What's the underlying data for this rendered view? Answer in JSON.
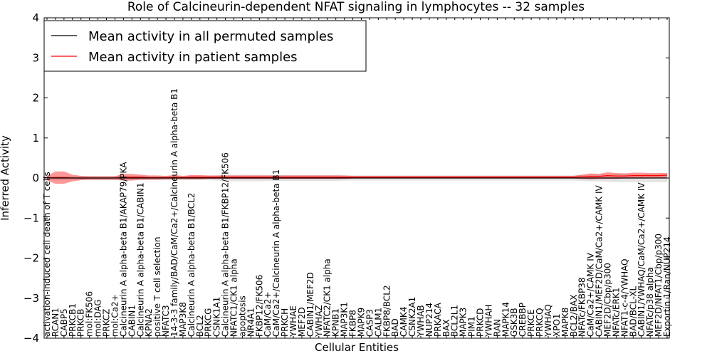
{
  "chart_data": {
    "type": "line",
    "title": "Role of Calcineurin-dependent NFAT signaling in lymphocytes -- 32 samples",
    "xlabel": "Cellular Entities",
    "ylabel": "Inferred Activity",
    "ylim": [
      -4,
      4
    ],
    "yticks": [
      -4,
      -3,
      -2,
      -1,
      0,
      1,
      2,
      3,
      4
    ],
    "ytick_labels": [
      "−4",
      "−3",
      "−2",
      "−1",
      "0",
      "1",
      "2",
      "3",
      "4"
    ],
    "legend": {
      "placement": "top-left",
      "entries": [
        {
          "label": "Mean activity in all permuted samples",
          "color": "#000000"
        },
        {
          "label": "Mean activity in patient samples",
          "color": "#ff0000"
        }
      ]
    },
    "categories": [
      "activation-induced cell death of T cells",
      "RCAN1",
      "CABP5",
      "PRKCB1",
      "PRKCB",
      "mol:FK506",
      "mol:DAG",
      "PRKCZ",
      "mol:Ca2+",
      "Calcineurin A alpha-beta B1/AKAP79/PKA",
      "CABIN1",
      "Calcineurin A alpha-beta B1/CABIN1",
      "KPNA2",
      "positive T cell selection",
      "NFATC3",
      "14-3-3 family/BAD/CaM/Ca2+/Calcineurin A alpha-beta B1",
      "MAP3K8",
      "Calcineurin A alpha-beta B1/BCL2",
      "BCL2",
      "PRKCG",
      "CSNK1A1",
      "Calcineurin A alpha-beta B1/FKBP12/FK506",
      "NFATC1/CK1 alpha",
      "apoptosis",
      "NR4A1",
      "FKBP12/FK506",
      "CaM/Ca2+",
      "CaM/Ca2+/Calcineurin A alpha-beta B1",
      "PRKCH",
      "YWHAE",
      "MEF2D",
      "CABIN1/MEF2D",
      "YWHAZ",
      "NFATC2/CK1 alpha",
      "KPNB1",
      "MAP3K1",
      "FKBP8",
      "MAPK9",
      "CASP3",
      "CALM1",
      "FKBP8/BCL2",
      "BAD",
      "CAMK4",
      "CSNK2A1",
      "YWHAB",
      "NUP214",
      "PRKACA",
      "BAX",
      "BCL2L1",
      "MAPK3",
      "PIM1",
      "PRKCD",
      "YWHAH",
      "RAN",
      "MAPK14",
      "GSK3B",
      "CREBBP",
      "PRKCE",
      "PRKCQ",
      "YWHAQ",
      "XPO1",
      "MAPK8",
      "BCL2/BAX",
      "NFATc/FKBP38",
      "CaM/Ca2+/CAMK IV",
      "CABIN1/MEF2D/CaM/Ca2+/CAMK IV",
      "MEF2D/Cbp/p300",
      "NFATc/ERK1",
      "NFAT1-c-4/YWHAQ",
      "BAD/BCL-XL",
      "CABIN1/YWHAQ/CaM/Ca2+/CAMK IV",
      "NFATc/p38 alpha",
      "MEF2D/NFAT1/Cbp/p300",
      "Exportin 1/Ran/NUP214"
    ],
    "series": [
      {
        "name": "Mean activity in all permuted samples",
        "color": "#000000",
        "mean": [
          0.0,
          0.0,
          0.0,
          0.0,
          0.0,
          0.0,
          0.0,
          0.0,
          0.0,
          0.0,
          0.0,
          0.0,
          0.0,
          0.0,
          0.0,
          0.0,
          0.0,
          0.0,
          0.0,
          0.0,
          0.0,
          0.0,
          0.0,
          0.0,
          0.0,
          0.0,
          0.0,
          0.0,
          0.0,
          0.0,
          0.0,
          0.0,
          0.0,
          0.0,
          0.0,
          0.0,
          0.0,
          0.0,
          0.0,
          0.0,
          0.0,
          0.0,
          0.0,
          0.0,
          0.0,
          0.0,
          0.0,
          0.0,
          0.0,
          0.0,
          0.0,
          0.0,
          0.0,
          0.0,
          0.0,
          0.0,
          0.0,
          0.0,
          0.0,
          0.0,
          0.0,
          0.0,
          0.0,
          0.0,
          0.0,
          0.0,
          0.0,
          0.0,
          0.0,
          0.0,
          0.0,
          0.0,
          0.0,
          0.0
        ],
        "band": [
          0.05,
          0.05,
          0.05,
          0.05,
          0.05,
          0.05,
          0.05,
          0.05,
          0.05,
          0.05,
          0.05,
          0.05,
          0.05,
          0.05,
          0.05,
          0.05,
          0.05,
          0.05,
          0.05,
          0.05,
          0.06,
          0.07,
          0.08,
          0.08,
          0.08,
          0.08,
          0.07,
          0.07,
          0.07,
          0.07,
          0.07,
          0.07,
          0.07,
          0.07,
          0.07,
          0.06,
          0.06,
          0.06,
          0.06,
          0.06,
          0.06,
          0.06,
          0.06,
          0.06,
          0.06,
          0.06,
          0.06,
          0.06,
          0.06,
          0.06,
          0.06,
          0.06,
          0.06,
          0.06,
          0.06,
          0.06,
          0.06,
          0.06,
          0.06,
          0.06,
          0.06,
          0.06,
          0.06,
          0.07,
          0.08,
          0.08,
          0.09,
          0.1,
          0.1,
          0.1,
          0.1,
          0.1,
          0.1,
          0.1
        ]
      },
      {
        "name": "Mean activity in patient samples",
        "color": "#ff0000",
        "mean": [
          0.0,
          0.01,
          0.01,
          0.0,
          0.0,
          0.0,
          0.0,
          0.0,
          0.0,
          0.02,
          0.02,
          0.02,
          0.01,
          0.01,
          0.01,
          0.02,
          0.01,
          0.02,
          0.02,
          0.02,
          0.02,
          0.02,
          0.02,
          0.02,
          0.02,
          0.02,
          0.02,
          0.02,
          0.02,
          0.02,
          0.02,
          0.02,
          0.02,
          0.02,
          0.02,
          0.02,
          0.02,
          0.02,
          0.02,
          0.02,
          0.02,
          0.02,
          0.02,
          0.02,
          0.02,
          0.02,
          0.02,
          0.02,
          0.02,
          0.02,
          0.02,
          0.02,
          0.02,
          0.02,
          0.02,
          0.02,
          0.02,
          0.02,
          0.02,
          0.02,
          0.02,
          0.02,
          0.02,
          0.03,
          0.04,
          0.04,
          0.06,
          0.05,
          0.05,
          0.06,
          0.06,
          0.06,
          0.06,
          0.07
        ],
        "band": [
          0.05,
          0.15,
          0.15,
          0.08,
          0.05,
          0.04,
          0.04,
          0.04,
          0.04,
          0.08,
          0.08,
          0.06,
          0.05,
          0.05,
          0.04,
          0.05,
          0.04,
          0.05,
          0.05,
          0.04,
          0.04,
          0.04,
          0.04,
          0.04,
          0.04,
          0.04,
          0.04,
          0.04,
          0.04,
          0.04,
          0.04,
          0.04,
          0.04,
          0.04,
          0.04,
          0.04,
          0.03,
          0.03,
          0.03,
          0.03,
          0.03,
          0.03,
          0.03,
          0.03,
          0.03,
          0.03,
          0.03,
          0.03,
          0.03,
          0.03,
          0.03,
          0.03,
          0.03,
          0.03,
          0.03,
          0.03,
          0.03,
          0.03,
          0.03,
          0.03,
          0.03,
          0.03,
          0.03,
          0.05,
          0.07,
          0.06,
          0.08,
          0.07,
          0.06,
          0.07,
          0.07,
          0.06,
          0.06,
          0.05
        ]
      }
    ]
  }
}
